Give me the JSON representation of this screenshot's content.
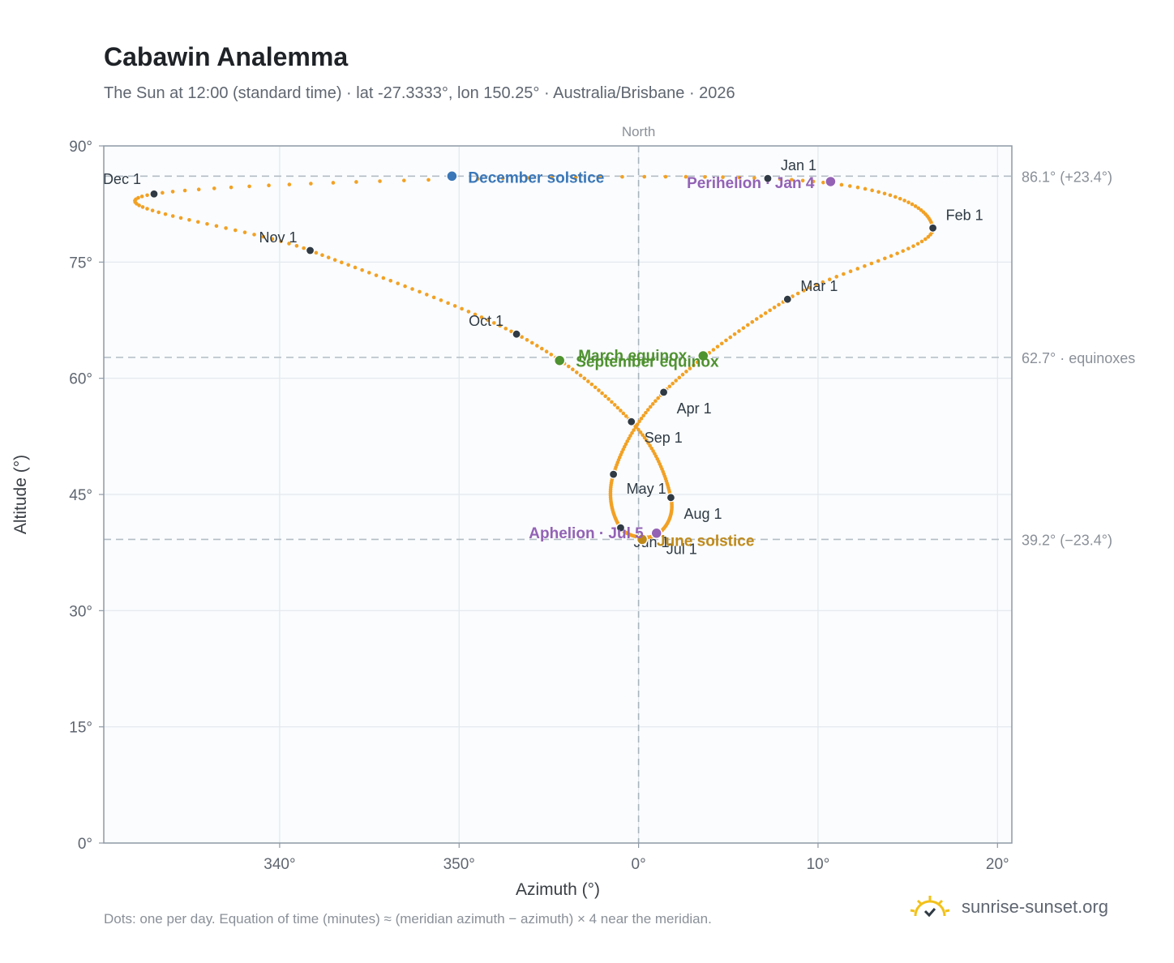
{
  "page": {
    "title": "Cabawin Analemma",
    "subtitle": "The Sun at 12:00 (standard time) · lat -27.3333°, lon 150.25° · Australia/Brisbane · 2026",
    "footnote": "Dots: one per day. Equation of time (minutes) ≈ (meridian azimuth − azimuth) × 4 near the meridian.",
    "brand": "sunrise-sunset.org"
  },
  "chart_data": {
    "type": "scatter",
    "xlabel": "Azimuth (°)",
    "ylabel": "Altitude (°)",
    "xlim": [
      330.2,
      20.8
    ],
    "ylim": [
      0,
      90
    ],
    "x_ticks": [
      {
        "value": 340,
        "label": "340°"
      },
      {
        "value": 350,
        "label": "350°"
      },
      {
        "value": 0,
        "label": "0°"
      },
      {
        "value": 10,
        "label": "10°"
      },
      {
        "value": 20,
        "label": "20°"
      }
    ],
    "y_ticks": [
      {
        "value": 0,
        "label": "0°"
      },
      {
        "value": 15,
        "label": "15°"
      },
      {
        "value": 30,
        "label": "30°"
      },
      {
        "value": 45,
        "label": "45°"
      },
      {
        "value": 60,
        "label": "60°"
      },
      {
        "value": 75,
        "label": "75°"
      },
      {
        "value": 90,
        "label": "90°"
      }
    ],
    "grid": true,
    "meridian": {
      "azimuth": 0,
      "label": "North"
    },
    "reference_lines": [
      {
        "altitude": 86.1,
        "label": "86.1° (+23.4°)"
      },
      {
        "altitude": 62.7,
        "label": "62.7° · equinoxes"
      },
      {
        "altitude": 39.2,
        "label": "39.2° (−23.4°)"
      }
    ],
    "path_color": "#f2a124",
    "months": [
      {
        "label": "Jan 1",
        "az": 7.2,
        "alt": 85.8
      },
      {
        "label": "Feb 1",
        "az": 16.4,
        "alt": 79.4
      },
      {
        "label": "Mar 1",
        "az": 8.3,
        "alt": 70.2
      },
      {
        "label": "Apr 1",
        "az": 1.4,
        "alt": 58.2
      },
      {
        "label": "May 1",
        "az": -1.4,
        "alt": 47.6
      },
      {
        "label": "Jun 1",
        "az": -1.0,
        "alt": 40.7
      },
      {
        "label": "Jul 1",
        "az": 1.0,
        "alt": 39.8
      },
      {
        "label": "Aug 1",
        "az": 1.8,
        "alt": 44.6
      },
      {
        "label": "Sep 1",
        "az": -0.4,
        "alt": 54.4
      },
      {
        "label": "Oct 1",
        "az": -6.8,
        "alt": 65.7
      },
      {
        "label": "Nov 1",
        "az": -18.3,
        "alt": 76.5
      },
      {
        "label": "Dec 1",
        "az": -27.0,
        "alt": 83.8
      }
    ],
    "events": [
      {
        "label": "December solstice",
        "az": -10.4,
        "alt": 86.1,
        "color": "#3a77b8"
      },
      {
        "label": "Perihelion · Jan 4",
        "az": 10.7,
        "alt": 85.4,
        "color": "#9362b5"
      },
      {
        "label": "March equinox",
        "az": 3.6,
        "alt": 62.9,
        "color": "#4f9230"
      },
      {
        "label": "September equinox",
        "az": -4.4,
        "alt": 62.3,
        "color": "#4f9230"
      },
      {
        "label": "June solstice",
        "az": 0.2,
        "alt": 39.2,
        "color": "#c08a1a"
      },
      {
        "label": "Aphelion · Jul 5",
        "az": 1.0,
        "alt": 40.0,
        "color": "#9362b5"
      }
    ]
  }
}
